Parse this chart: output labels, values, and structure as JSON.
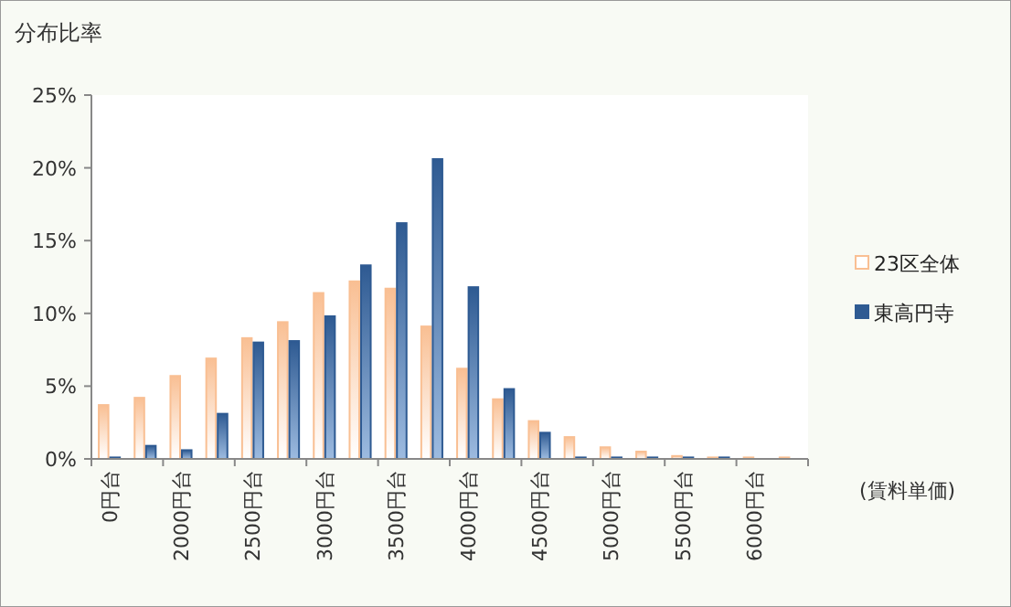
{
  "chart_data": {
    "type": "bar",
    "title": "分布比率",
    "xlabel": "(賃料単価)",
    "legend": "right",
    "categories": [
      "0円台",
      null,
      "2000円台",
      null,
      "2500円台",
      null,
      "3000円台",
      null,
      "3500円台",
      null,
      "4000円台",
      null,
      "4500円台",
      null,
      "5000円台",
      null,
      "5500円台",
      null,
      "6000円台",
      null
    ],
    "series": [
      {
        "name": "23区全体",
        "color": "#f9bf93",
        "values": [
          3.7,
          4.2,
          5.7,
          6.9,
          8.3,
          9.4,
          11.4,
          12.2,
          11.7,
          9.1,
          6.2,
          4.1,
          2.6,
          1.5,
          0.8,
          0.5,
          0.2,
          0.1,
          0.1,
          0.1
        ]
      },
      {
        "name": "東高円寺",
        "color": "#2e5a92",
        "values": [
          0.1,
          0.9,
          0.6,
          3.1,
          8.0,
          8.1,
          9.8,
          13.3,
          16.2,
          20.6,
          11.8,
          4.8,
          1.8,
          0.1,
          0.1,
          0.1,
          0.1,
          0.1,
          0,
          0
        ]
      }
    ],
    "ylim": [
      0,
      25
    ],
    "yticks": [
      {
        "value": 0,
        "label": "0%"
      },
      {
        "value": 5,
        "label": "5%"
      },
      {
        "value": 10,
        "label": "10%"
      },
      {
        "value": 15,
        "label": "15%"
      },
      {
        "value": 20,
        "label": "20%"
      },
      {
        "value": 25,
        "label": "25%"
      }
    ]
  }
}
